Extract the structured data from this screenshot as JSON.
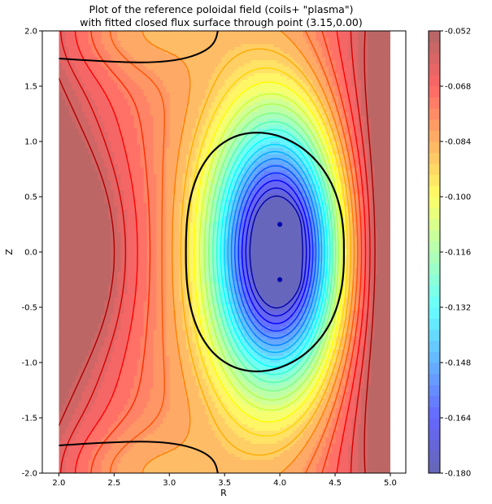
{
  "chart_data": {
    "type": "contour",
    "title_line1": "Plot of the reference poloidal field (coils+ \"plasma\")",
    "title_line2": "with fitted closed flux surface through point (3.15,0.00)",
    "xlabel": "R",
    "ylabel": "Z",
    "xlim": [
      1.85,
      5.14
    ],
    "ylim": [
      -2.0,
      2.0
    ],
    "field_extent": {
      "r": [
        2.0,
        5.0
      ],
      "z": [
        -2.0,
        2.0
      ]
    },
    "x_ticks": [
      "2.0",
      "2.5",
      "3.0",
      "3.5",
      "4.0",
      "4.5",
      "5.0"
    ],
    "x_tick_values": [
      2.0,
      2.5,
      3.0,
      3.5,
      4.0,
      4.5,
      5.0
    ],
    "y_ticks": [
      "-2.0",
      "-1.5",
      "-1.0",
      "-0.5",
      "0.0",
      "0.5",
      "1.0",
      "1.5",
      "2.0"
    ],
    "y_tick_values": [
      -2.0,
      -1.5,
      -1.0,
      -0.5,
      0.0,
      0.5,
      1.0,
      1.5,
      2.0
    ],
    "colorbar": {
      "min": -0.18,
      "max": -0.052,
      "colormap": "jet (semi-transparent)",
      "tick_labels": [
        "-0.052",
        "-0.068",
        "-0.084",
        "-0.100",
        "-0.116",
        "-0.132",
        "-0.148",
        "-0.164",
        "-0.180"
      ],
      "tick_values": [
        -0.052,
        -0.068,
        -0.084,
        -0.1,
        -0.116,
        -0.132,
        -0.148,
        -0.164,
        -0.18
      ]
    },
    "magnetic_axes": [
      {
        "r": 4.0,
        "z": 0.25
      },
      {
        "r": 4.0,
        "z": -0.25
      }
    ],
    "fitted_closed_flux_surface": {
      "through_point": {
        "r": 3.15,
        "z": 0.0
      },
      "r_range": [
        3.15,
        4.58
      ],
      "z_range": [
        -1.08,
        1.08
      ],
      "color": "#000000"
    },
    "separatrix_arms": [
      {
        "region": "top",
        "z_at_left": 1.75,
        "z_min": 1.71
      },
      {
        "region": "bottom",
        "z_at_left": -1.75,
        "z_max": -1.71
      }
    ]
  }
}
